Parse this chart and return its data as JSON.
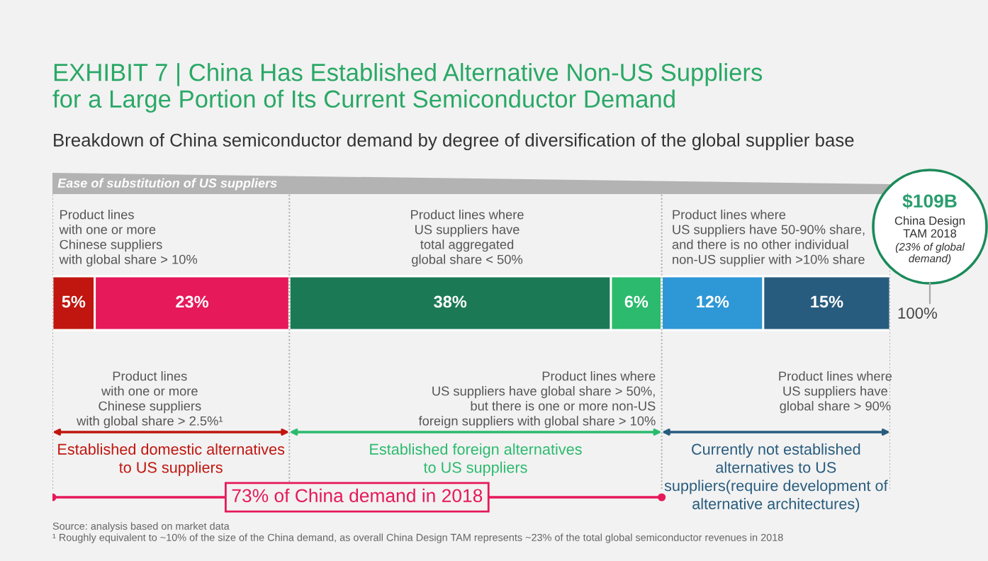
{
  "chart_data": {
    "type": "bar",
    "orientation": "horizontal",
    "stacked": true,
    "title": "EXHIBIT 7 | China Has Established Alternative Non-US Suppliers\nfor a Large Portion of Its Current Semiconductor Demand",
    "subtitle": "Breakdown of China semiconductor demand by degree of diversification of the global supplier base",
    "categories": [
      null
    ],
    "ref_lines": [
      {
        "axis": "x",
        "value": 0,
        "color": "#aaaaaa",
        "line_style": "dotted"
      },
      {
        "axis": "x",
        "value": 28,
        "color": "#aaaaaa",
        "line_style": "dotted"
      },
      {
        "axis": "x",
        "value": 72,
        "color": "#aaaaaa",
        "line_style": "dotted"
      },
      {
        "axis": "x",
        "value": 99,
        "color": "#aaaaaa",
        "line_style": "dotted"
      }
    ],
    "series": [
      {
        "color": "#c0160f",
        "values": [
          5
        ],
        "value_labels": [
          "5%"
        ]
      },
      {
        "color": "#e6195a",
        "values": [
          23
        ],
        "value_labels": [
          "23%"
        ]
      },
      {
        "color": "#1b7a55",
        "values": [
          38
        ],
        "value_labels": [
          "38%"
        ]
      },
      {
        "color": "#2cba6e",
        "values": [
          6
        ],
        "value_labels": [
          "6%"
        ]
      },
      {
        "color": "#2e97d6",
        "values": [
          12
        ],
        "value_labels": [
          "12%"
        ]
      },
      {
        "color": "#285c7e",
        "values": [
          15
        ],
        "value_labels": [
          "15%"
        ]
      }
    ],
    "annotations": [
      "Ease of substitution of US suppliers",
      "Product lines\nwith one or more\nChinese suppliers\nwith global share > 10%",
      "Product lines where\nUS suppliers have\ntotal aggregated\nglobal share < 50%",
      "Product lines where\nUS suppliers have 50-90% share,\nand there is no other individual\nnon-US supplier with >10% share",
      "$109B",
      "China Design\nTAM 2018",
      "(23% of global\ndemand)",
      "100%",
      "Product lines\nwith one or more\nChinese suppliers\nwith global share > 2.5%¹",
      "Product lines where\nUS suppliers have global share > 50%,\nbut there is one or more non-US\nforeign suppliers with global share > 10%",
      "Product lines where\nUS suppliers have\nglobal share > 90%",
      "Established domestic alternatives\nto US suppliers",
      "Established foreign alternatives\nto US suppliers",
      "Currently not established\nalternatives to US\nsuppliers(require development of\nalternative architectures)",
      "73% of China demand in 2018",
      "Source: analysis based on market data",
      "¹ Roughly equivalent to ~10% of the size of the China demand, as overall China Design TAM represents ~23% of the total global semiconductor revenues in 2018"
    ]
  }
}
